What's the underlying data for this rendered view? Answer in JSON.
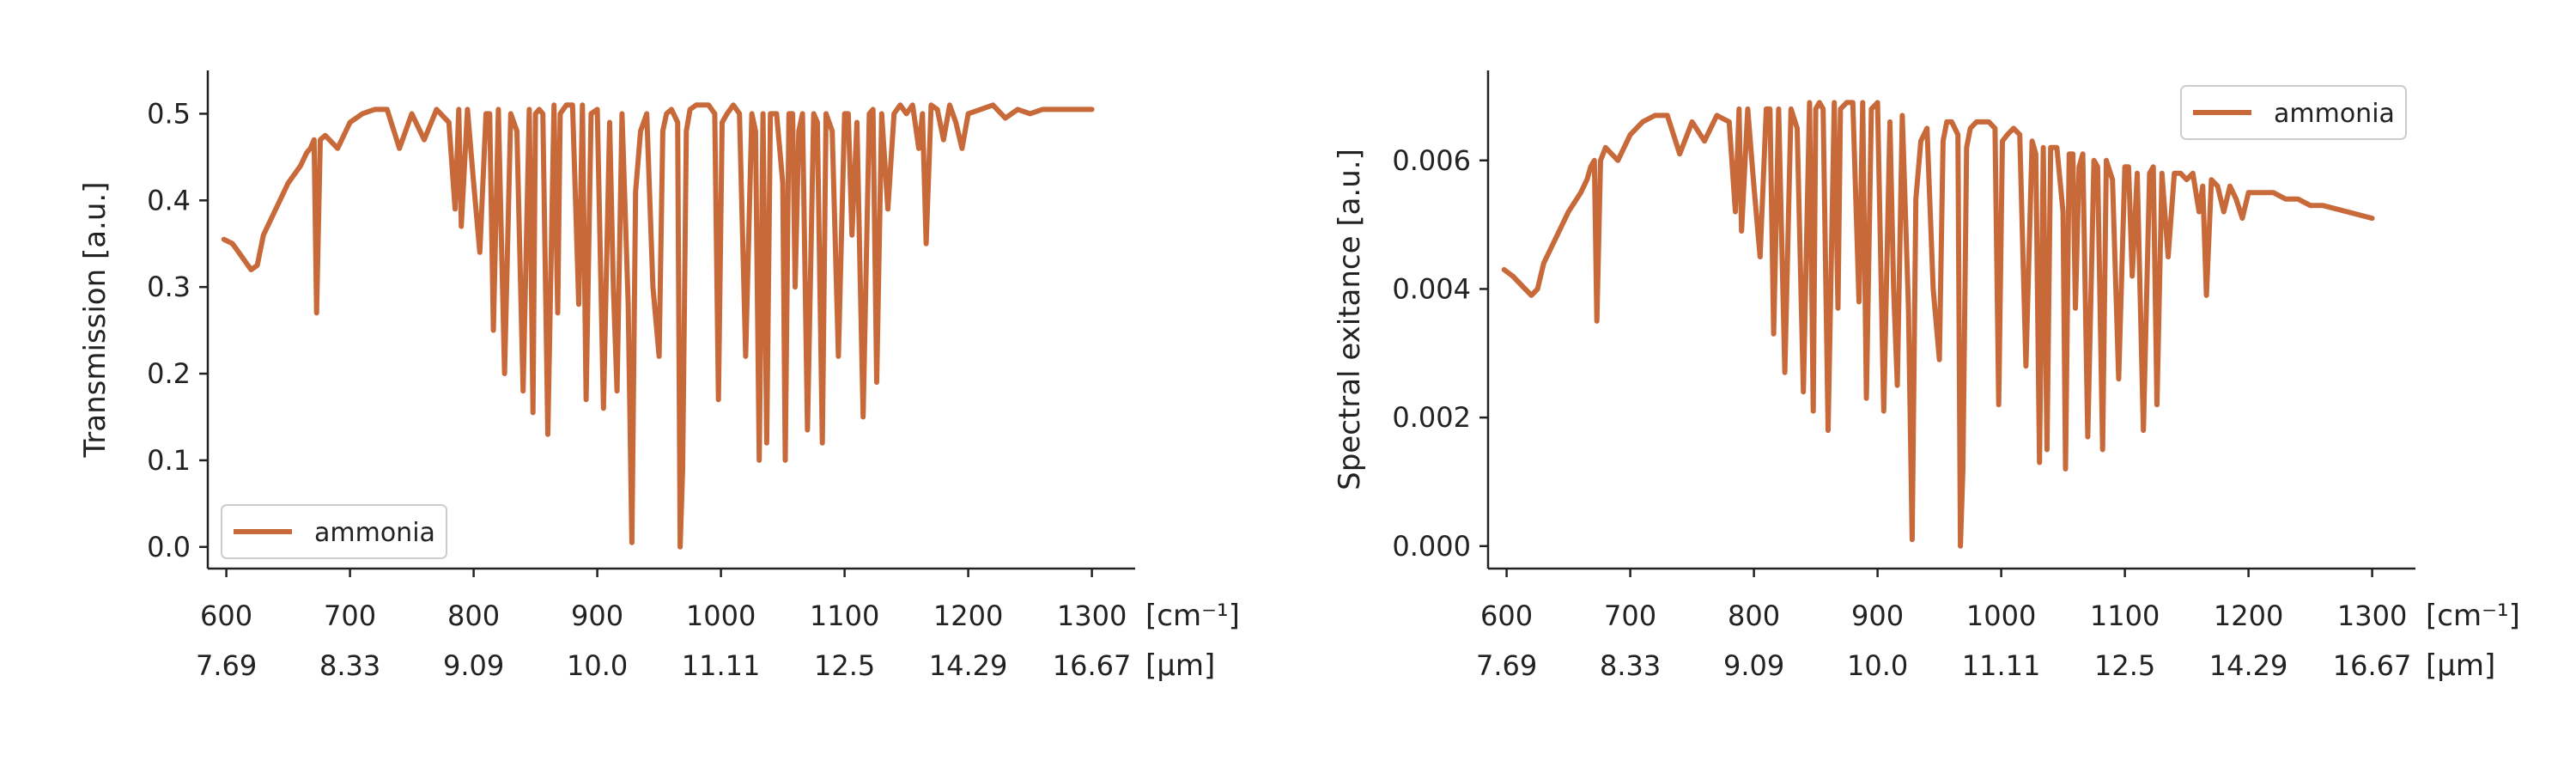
{
  "chart_data": [
    {
      "type": "line",
      "ylabel": "Transmission [a.u.]",
      "xlabel": "",
      "xlim": [
        585,
        1335
      ],
      "ylim": [
        -0.025,
        0.55
      ],
      "x_ticks": [
        600,
        700,
        800,
        900,
        1000,
        1100,
        1200,
        1300
      ],
      "x_ticks_secondary": [
        "7.69",
        "8.33",
        "9.09",
        "10.0",
        "11.11",
        "12.5",
        "14.29",
        "16.67"
      ],
      "x_unit_primary": "[cm⁻¹]",
      "x_unit_secondary": "[µm]",
      "y_ticks": [
        "0.0",
        "0.1",
        "0.2",
        "0.3",
        "0.4",
        "0.5"
      ],
      "y_tick_values": [
        0.0,
        0.1,
        0.2,
        0.3,
        0.4,
        0.5
      ],
      "grid": false,
      "legend_placement": "lower-left",
      "series": [
        {
          "name": "ammonia",
          "color": "#c8693a",
          "x": [
            598,
            605,
            610,
            615,
            620,
            625,
            630,
            640,
            650,
            660,
            665,
            668,
            671,
            673,
            676,
            680,
            690,
            700,
            710,
            720,
            730,
            740,
            750,
            760,
            770,
            780,
            785,
            788,
            790,
            795,
            800,
            805,
            810,
            813,
            816,
            820,
            825,
            830,
            835,
            840,
            845,
            848,
            850,
            853,
            856,
            860,
            865,
            868,
            870,
            875,
            880,
            885,
            888,
            891,
            895,
            900,
            905,
            910,
            913,
            916,
            920,
            925,
            928,
            931,
            935,
            940,
            945,
            950,
            953,
            956,
            960,
            965,
            967,
            969,
            972,
            975,
            980,
            990,
            995,
            998,
            1001,
            1005,
            1010,
            1015,
            1020,
            1025,
            1028,
            1031,
            1034,
            1037,
            1040,
            1045,
            1050,
            1052,
            1055,
            1058,
            1060,
            1063,
            1066,
            1070,
            1075,
            1078,
            1082,
            1085,
            1090,
            1095,
            1100,
            1103,
            1106,
            1110,
            1115,
            1120,
            1123,
            1126,
            1130,
            1135,
            1140,
            1145,
            1150,
            1155,
            1160,
            1163,
            1166,
            1170,
            1175,
            1180,
            1185,
            1190,
            1195,
            1200,
            1210,
            1220,
            1230,
            1240,
            1250,
            1260,
            1280,
            1300
          ],
          "y": [
            0.355,
            0.35,
            0.34,
            0.33,
            0.32,
            0.325,
            0.36,
            0.39,
            0.42,
            0.44,
            0.455,
            0.46,
            0.47,
            0.27,
            0.47,
            0.475,
            0.46,
            0.49,
            0.5,
            0.505,
            0.505,
            0.46,
            0.5,
            0.47,
            0.505,
            0.49,
            0.39,
            0.505,
            0.37,
            0.505,
            0.42,
            0.34,
            0.5,
            0.5,
            0.25,
            0.505,
            0.2,
            0.5,
            0.48,
            0.18,
            0.505,
            0.155,
            0.5,
            0.505,
            0.5,
            0.13,
            0.51,
            0.27,
            0.5,
            0.51,
            0.51,
            0.28,
            0.51,
            0.17,
            0.5,
            0.505,
            0.16,
            0.49,
            0.3,
            0.18,
            0.5,
            0.28,
            0.005,
            0.41,
            0.48,
            0.5,
            0.3,
            0.22,
            0.48,
            0.5,
            0.505,
            0.49,
            0.0,
            0.09,
            0.48,
            0.505,
            0.51,
            0.51,
            0.5,
            0.17,
            0.49,
            0.5,
            0.51,
            0.5,
            0.22,
            0.5,
            0.48,
            0.1,
            0.5,
            0.12,
            0.5,
            0.5,
            0.42,
            0.1,
            0.5,
            0.5,
            0.3,
            0.48,
            0.5,
            0.135,
            0.5,
            0.49,
            0.12,
            0.5,
            0.48,
            0.22,
            0.5,
            0.5,
            0.36,
            0.49,
            0.15,
            0.5,
            0.505,
            0.19,
            0.5,
            0.39,
            0.5,
            0.51,
            0.5,
            0.51,
            0.46,
            0.5,
            0.35,
            0.51,
            0.505,
            0.47,
            0.51,
            0.49,
            0.46,
            0.5,
            0.505,
            0.51,
            0.495,
            0.505,
            0.5,
            0.505,
            0.505,
            0.505
          ]
        }
      ]
    },
    {
      "type": "line",
      "ylabel": "Spectral exitance [a.u.]",
      "xlabel": "",
      "xlim": [
        585,
        1335
      ],
      "ylim": [
        -0.00035,
        0.0074
      ],
      "x_ticks": [
        600,
        700,
        800,
        900,
        1000,
        1100,
        1200,
        1300
      ],
      "x_ticks_secondary": [
        "7.69",
        "8.33",
        "9.09",
        "10.0",
        "11.11",
        "12.5",
        "14.29",
        "16.67"
      ],
      "x_unit_primary": "[cm⁻¹]",
      "x_unit_secondary": "[µm]",
      "y_ticks": [
        "0.000",
        "0.002",
        "0.004",
        "0.006"
      ],
      "y_tick_values": [
        0.0,
        0.002,
        0.004,
        0.006
      ],
      "grid": false,
      "legend_placement": "upper-right",
      "series": [
        {
          "name": "ammonia",
          "color": "#c8693a",
          "x": [
            598,
            605,
            610,
            615,
            620,
            625,
            630,
            640,
            650,
            660,
            665,
            668,
            671,
            673,
            676,
            680,
            690,
            700,
            710,
            720,
            730,
            740,
            750,
            760,
            770,
            780,
            785,
            788,
            790,
            795,
            800,
            805,
            810,
            813,
            816,
            820,
            825,
            830,
            835,
            840,
            845,
            848,
            850,
            853,
            856,
            860,
            865,
            868,
            870,
            875,
            880,
            885,
            888,
            891,
            895,
            900,
            905,
            910,
            913,
            916,
            920,
            925,
            928,
            931,
            935,
            940,
            945,
            950,
            953,
            956,
            960,
            965,
            967,
            969,
            972,
            975,
            980,
            990,
            995,
            998,
            1001,
            1005,
            1010,
            1015,
            1020,
            1025,
            1028,
            1031,
            1034,
            1037,
            1040,
            1045,
            1050,
            1052,
            1055,
            1058,
            1060,
            1063,
            1066,
            1070,
            1075,
            1078,
            1082,
            1085,
            1090,
            1095,
            1100,
            1103,
            1106,
            1110,
            1115,
            1120,
            1123,
            1126,
            1130,
            1135,
            1140,
            1145,
            1150,
            1155,
            1160,
            1163,
            1166,
            1170,
            1175,
            1180,
            1185,
            1190,
            1195,
            1200,
            1210,
            1220,
            1230,
            1240,
            1250,
            1260,
            1280,
            1300
          ],
          "y": [
            0.0043,
            0.0042,
            0.0041,
            0.004,
            0.0039,
            0.004,
            0.0044,
            0.0048,
            0.0052,
            0.0055,
            0.0057,
            0.0059,
            0.006,
            0.0035,
            0.006,
            0.0062,
            0.006,
            0.0064,
            0.0066,
            0.0067,
            0.0067,
            0.0061,
            0.0066,
            0.0063,
            0.0067,
            0.0066,
            0.0052,
            0.0068,
            0.0049,
            0.0068,
            0.0056,
            0.0045,
            0.0068,
            0.0068,
            0.0033,
            0.0068,
            0.0027,
            0.0068,
            0.0065,
            0.0024,
            0.0069,
            0.0021,
            0.0068,
            0.0069,
            0.0068,
            0.0018,
            0.0069,
            0.0037,
            0.0068,
            0.0069,
            0.0069,
            0.0038,
            0.0069,
            0.0023,
            0.0068,
            0.0069,
            0.0021,
            0.0066,
            0.004,
            0.0025,
            0.0067,
            0.0037,
            0.0001,
            0.0054,
            0.0063,
            0.0065,
            0.004,
            0.0029,
            0.0063,
            0.0066,
            0.0066,
            0.0064,
            0.0,
            0.0012,
            0.0062,
            0.0065,
            0.0066,
            0.0066,
            0.0065,
            0.0022,
            0.0063,
            0.0064,
            0.0065,
            0.0064,
            0.0028,
            0.0063,
            0.0061,
            0.0013,
            0.0062,
            0.0015,
            0.0062,
            0.0062,
            0.0052,
            0.0012,
            0.0061,
            0.0061,
            0.0037,
            0.0059,
            0.0061,
            0.0017,
            0.006,
            0.0059,
            0.0015,
            0.006,
            0.0057,
            0.0026,
            0.0059,
            0.0059,
            0.0042,
            0.0058,
            0.0018,
            0.0058,
            0.0059,
            0.0022,
            0.0058,
            0.0045,
            0.0058,
            0.0058,
            0.0057,
            0.0058,
            0.0052,
            0.0056,
            0.0039,
            0.0057,
            0.0056,
            0.0052,
            0.0056,
            0.0054,
            0.0051,
            0.0055,
            0.0055,
            0.0055,
            0.0054,
            0.0054,
            0.0053,
            0.0053,
            0.0052,
            0.0051
          ]
        }
      ]
    }
  ]
}
